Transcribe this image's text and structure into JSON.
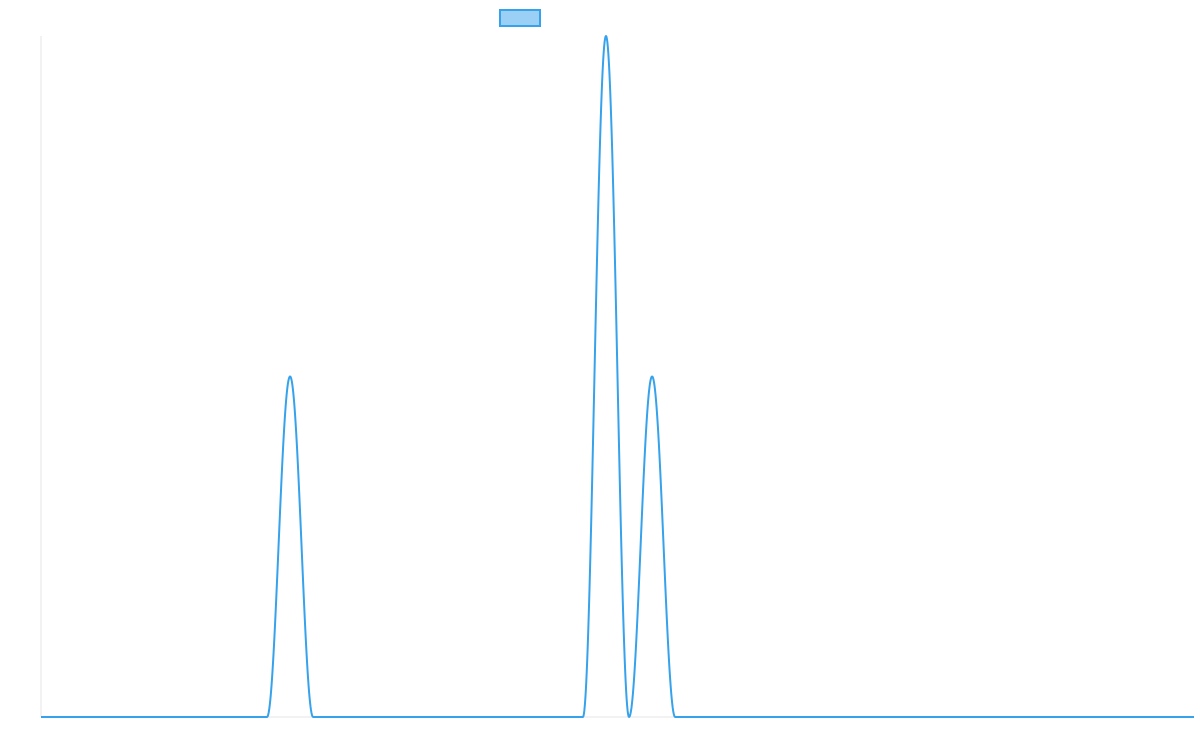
{
  "colors": {
    "series": "#36a2eb",
    "series_fill": "#9ad0f5",
    "axis": "#e6e6e6",
    "background": "#ffffff"
  },
  "chart_data": {
    "type": "line",
    "legend": {
      "position": "top",
      "label": ""
    },
    "x_range": [
      0,
      1
    ],
    "y_range": [
      0,
      1
    ],
    "grid": false,
    "x_ticks_shown": false,
    "y_ticks_shown": false,
    "series": [
      {
        "style": "gaussian-peaks",
        "baseline": 0,
        "peaks": [
          {
            "center": 0.216,
            "height": 0.5,
            "halfwidth": 0.02
          },
          {
            "center": 0.49,
            "height": 1.0,
            "halfwidth": 0.02
          },
          {
            "center": 0.53,
            "height": 0.5,
            "halfwidth": 0.02
          }
        ]
      }
    ]
  }
}
